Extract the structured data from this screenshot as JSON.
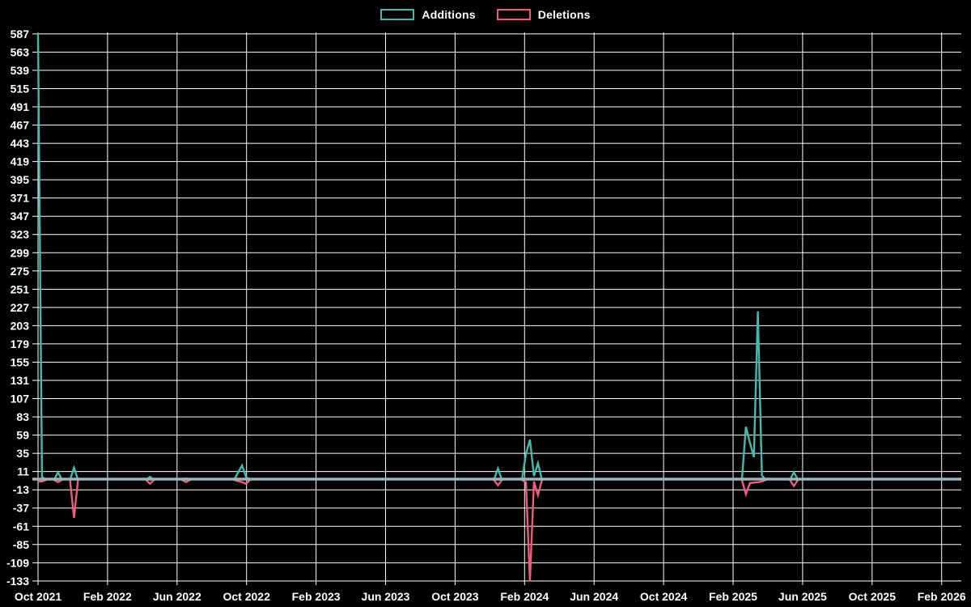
{
  "legend": {
    "items": [
      {
        "label": "Additions",
        "color": "#46b8ae"
      },
      {
        "label": "Deletions",
        "color": "#ef5b7d"
      }
    ]
  },
  "chart_data": {
    "type": "line",
    "title": "",
    "xlabel": "",
    "ylabel": "",
    "background": "#000000",
    "grid_color": "#ffffff",
    "text_color": "#ffffff",
    "zero_line_color": "#9cb3bb",
    "ylim": [
      -133,
      587
    ],
    "y_ticks": [
      587,
      563,
      539,
      515,
      491,
      467,
      443,
      419,
      395,
      371,
      347,
      323,
      299,
      275,
      251,
      227,
      203,
      179,
      155,
      131,
      107,
      83,
      59,
      35,
      11,
      -13,
      -37,
      -61,
      -85,
      -109,
      -133
    ],
    "x_tick_labels": [
      "Oct 2021",
      "Feb 2022",
      "Jun 2022",
      "Oct 2022",
      "Feb 2023",
      "Jun 2023",
      "Oct 2023",
      "Feb 2024",
      "Jun 2024",
      "Oct 2024",
      "Feb 2025",
      "Jun 2025",
      "Oct 2025",
      "Feb 2026"
    ],
    "x_weeks_per_tick": 17.38,
    "x_total_weeks": 231,
    "series": [
      {
        "name": "Additions",
        "color": "#46b8ae",
        "segments": [
          [
            [
              0,
              587
            ],
            [
              1,
              4
            ],
            [
              2,
              0
            ]
          ],
          [
            [
              4,
              0
            ],
            [
              5,
              10
            ],
            [
              6,
              0
            ]
          ],
          [
            [
              8,
              0
            ],
            [
              9,
              16
            ],
            [
              10,
              0
            ]
          ],
          [
            [
              27,
              0
            ],
            [
              28,
              4
            ],
            [
              29,
              0
            ]
          ],
          [
            [
              36,
              0
            ],
            [
              37,
              2
            ],
            [
              38,
              0
            ]
          ],
          [
            [
              49,
              0
            ],
            [
              51,
              19
            ],
            [
              52,
              4
            ],
            [
              53,
              0
            ]
          ],
          [
            [
              114,
              0
            ],
            [
              115,
              15
            ],
            [
              116,
              0
            ]
          ],
          [
            [
              121,
              0
            ],
            [
              122,
              34
            ],
            [
              123,
              53
            ],
            [
              124,
              5
            ],
            [
              125,
              22
            ],
            [
              126,
              0
            ]
          ],
          [
            [
              176,
              0
            ],
            [
              177,
              70
            ],
            [
              178,
              49
            ],
            [
              179,
              30
            ],
            [
              180,
              222
            ],
            [
              181,
              6
            ],
            [
              182,
              0
            ]
          ],
          [
            [
              188,
              0
            ],
            [
              189,
              10
            ],
            [
              190,
              0
            ]
          ]
        ]
      },
      {
        "name": "Deletions",
        "color": "#ef5b7d",
        "segments": [
          [
            [
              0,
              -2
            ],
            [
              1,
              -2
            ],
            [
              2,
              0
            ]
          ],
          [
            [
              4,
              0
            ],
            [
              5,
              -3
            ],
            [
              6,
              0
            ]
          ],
          [
            [
              8,
              0
            ],
            [
              9,
              -50
            ],
            [
              10,
              0
            ]
          ],
          [
            [
              27,
              0
            ],
            [
              28,
              -5
            ],
            [
              29,
              0
            ]
          ],
          [
            [
              36,
              0
            ],
            [
              37,
              -3
            ],
            [
              38,
              0
            ]
          ],
          [
            [
              49,
              0
            ],
            [
              51,
              -3
            ],
            [
              52,
              -5
            ],
            [
              53,
              0
            ]
          ],
          [
            [
              114,
              0
            ],
            [
              115,
              -7
            ],
            [
              116,
              0
            ]
          ],
          [
            [
              121,
              0
            ],
            [
              122,
              -3
            ],
            [
              123,
              -133
            ],
            [
              124,
              -2
            ],
            [
              125,
              -20
            ],
            [
              126,
              0
            ]
          ],
          [
            [
              176,
              0
            ],
            [
              177,
              -19
            ],
            [
              178,
              -4
            ],
            [
              180,
              -3
            ],
            [
              181,
              -2
            ],
            [
              182,
              0
            ]
          ],
          [
            [
              188,
              0
            ],
            [
              189,
              -8
            ],
            [
              190,
              0
            ]
          ]
        ]
      }
    ]
  }
}
